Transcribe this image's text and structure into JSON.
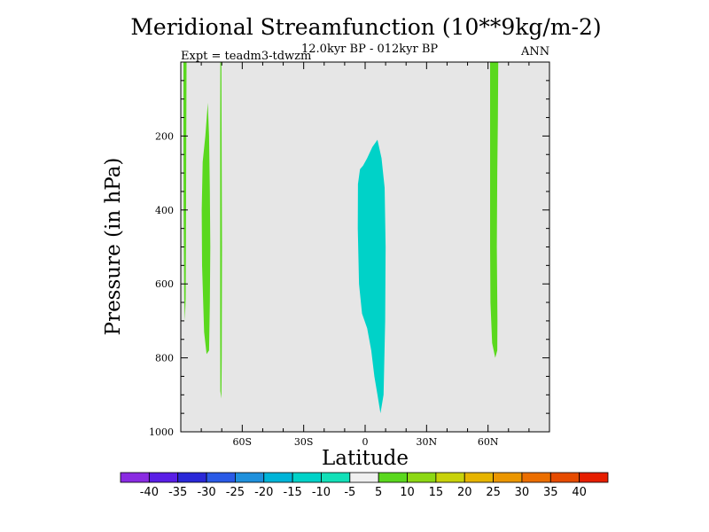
{
  "chart_data": {
    "type": "contour",
    "title": "Meridional Streamfunction (10**9kg/m-2)",
    "subtitle": "12.0kyr BP - 012kyr BP",
    "experiment": "Expt = teadm3-tdwzm",
    "season": "ANN",
    "xlabel": "Latitude",
    "ylabel": "Pressure (in hPa)",
    "xlim": [
      -90,
      90
    ],
    "ylim": [
      1000,
      0
    ],
    "x_ticks": [
      {
        "value": -60,
        "label": "60S"
      },
      {
        "value": -30,
        "label": "30S"
      },
      {
        "value": 0,
        "label": "0"
      },
      {
        "value": 30,
        "label": "30N"
      },
      {
        "value": 60,
        "label": "60N"
      }
    ],
    "y_ticks": [
      {
        "value": 200,
        "label": "200"
      },
      {
        "value": 400,
        "label": "400"
      },
      {
        "value": 600,
        "label": "600"
      },
      {
        "value": 800,
        "label": "800"
      },
      {
        "value": 1000,
        "label": "1000"
      }
    ],
    "background_color": "#e6e6e6",
    "colorbar": {
      "levels": [
        -40,
        -35,
        -30,
        -25,
        -20,
        -15,
        -10,
        -5,
        5,
        10,
        15,
        20,
        25,
        30,
        35,
        40
      ],
      "colors": [
        "#8a2be2",
        "#5a1ee6",
        "#2a28d8",
        "#2a5ae6",
        "#1f90dc",
        "#00b4d8",
        "#00d2c8",
        "#12e0b8",
        "#f0f0f0",
        "#5ad81e",
        "#8cd814",
        "#c8d20a",
        "#e6b400",
        "#eb9600",
        "#eb6e00",
        "#e64b00",
        "#e61e00"
      ]
    },
    "regions": [
      {
        "name": "band 5 to 10 near 88S",
        "color_level": 10,
        "polygon": [
          [
            -88.7,
            0
          ],
          [
            -87.2,
            0
          ],
          [
            -87.3,
            200
          ],
          [
            -87.5,
            500
          ],
          [
            -87.6,
            640
          ],
          [
            -88.0,
            700
          ],
          [
            -88.3,
            640
          ],
          [
            -88.6,
            400
          ],
          [
            -88.7,
            200
          ]
        ]
      },
      {
        "name": "band 5 to 10 near 78S",
        "color_level": 10,
        "polygon": [
          [
            -76.8,
            110
          ],
          [
            -76.2,
            200
          ],
          [
            -75.8,
            350
          ],
          [
            -75.6,
            500
          ],
          [
            -75.8,
            650
          ],
          [
            -76.2,
            780
          ],
          [
            -77.4,
            790
          ],
          [
            -78.6,
            730
          ],
          [
            -79.6,
            550
          ],
          [
            -79.8,
            400
          ],
          [
            -79.3,
            270
          ],
          [
            -78.0,
            200
          ]
        ]
      },
      {
        "name": "band 5 to 10 near 70S",
        "color_level": 10,
        "polygon": [
          [
            -70.7,
            0
          ],
          [
            -70.2,
            0
          ],
          [
            -70.0,
            300
          ],
          [
            -69.9,
            500
          ],
          [
            -70.0,
            800
          ],
          [
            -70.2,
            910
          ],
          [
            -70.7,
            890
          ],
          [
            -70.8,
            700
          ],
          [
            -70.8,
            500
          ],
          [
            -70.8,
            200
          ]
        ]
      },
      {
        "name": "band -5 to -10 near equator",
        "color_level": -10,
        "polygon": [
          [
            -3.5,
            330
          ],
          [
            -2.5,
            290
          ],
          [
            -1.0,
            280
          ],
          [
            1.0,
            260
          ],
          [
            3.5,
            230
          ],
          [
            6.0,
            210
          ],
          [
            8.0,
            260
          ],
          [
            9.5,
            340
          ],
          [
            10.0,
            500
          ],
          [
            9.8,
            700
          ],
          [
            9.0,
            900
          ],
          [
            7.5,
            950
          ],
          [
            6.0,
            900
          ],
          [
            4.5,
            850
          ],
          [
            3.0,
            780
          ],
          [
            1.0,
            720
          ],
          [
            -1.5,
            680
          ],
          [
            -3.0,
            600
          ],
          [
            -3.6,
            450
          ]
        ]
      },
      {
        "name": "band 5 to 10 near 63N",
        "color_level": 10,
        "polygon": [
          [
            61.0,
            0
          ],
          [
            65.0,
            0
          ],
          [
            64.8,
            150
          ],
          [
            64.5,
            300
          ],
          [
            64.3,
            500
          ],
          [
            64.6,
            700
          ],
          [
            64.5,
            780
          ],
          [
            63.5,
            800
          ],
          [
            62.0,
            760
          ],
          [
            61.2,
            650
          ],
          [
            61.0,
            500
          ],
          [
            61.0,
            300
          ],
          [
            61.0,
            150
          ]
        ]
      }
    ]
  }
}
